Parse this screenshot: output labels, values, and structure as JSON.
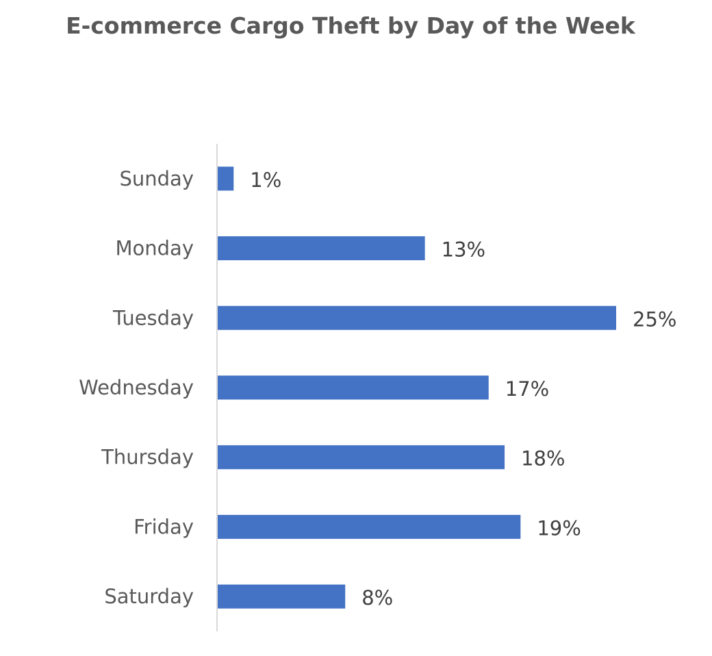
{
  "chart_data": {
    "type": "bar",
    "orientation": "horizontal",
    "title": "E-commerce Cargo Theft by Day of the Week",
    "xlabel": "",
    "ylabel": "",
    "categories": [
      "Sunday",
      "Monday",
      "Tuesday",
      "Wednesday",
      "Thursday",
      "Friday",
      "Saturday"
    ],
    "values": [
      1,
      13,
      25,
      17,
      18,
      19,
      8
    ],
    "value_labels": [
      "1%",
      "13%",
      "25%",
      "17%",
      "18%",
      "19%",
      "8%"
    ],
    "unit": "%",
    "xlim": [
      0,
      25
    ],
    "grid": false,
    "legend": "none",
    "bar_color": "#4472C4",
    "axis_color": "#D9D9D9"
  }
}
